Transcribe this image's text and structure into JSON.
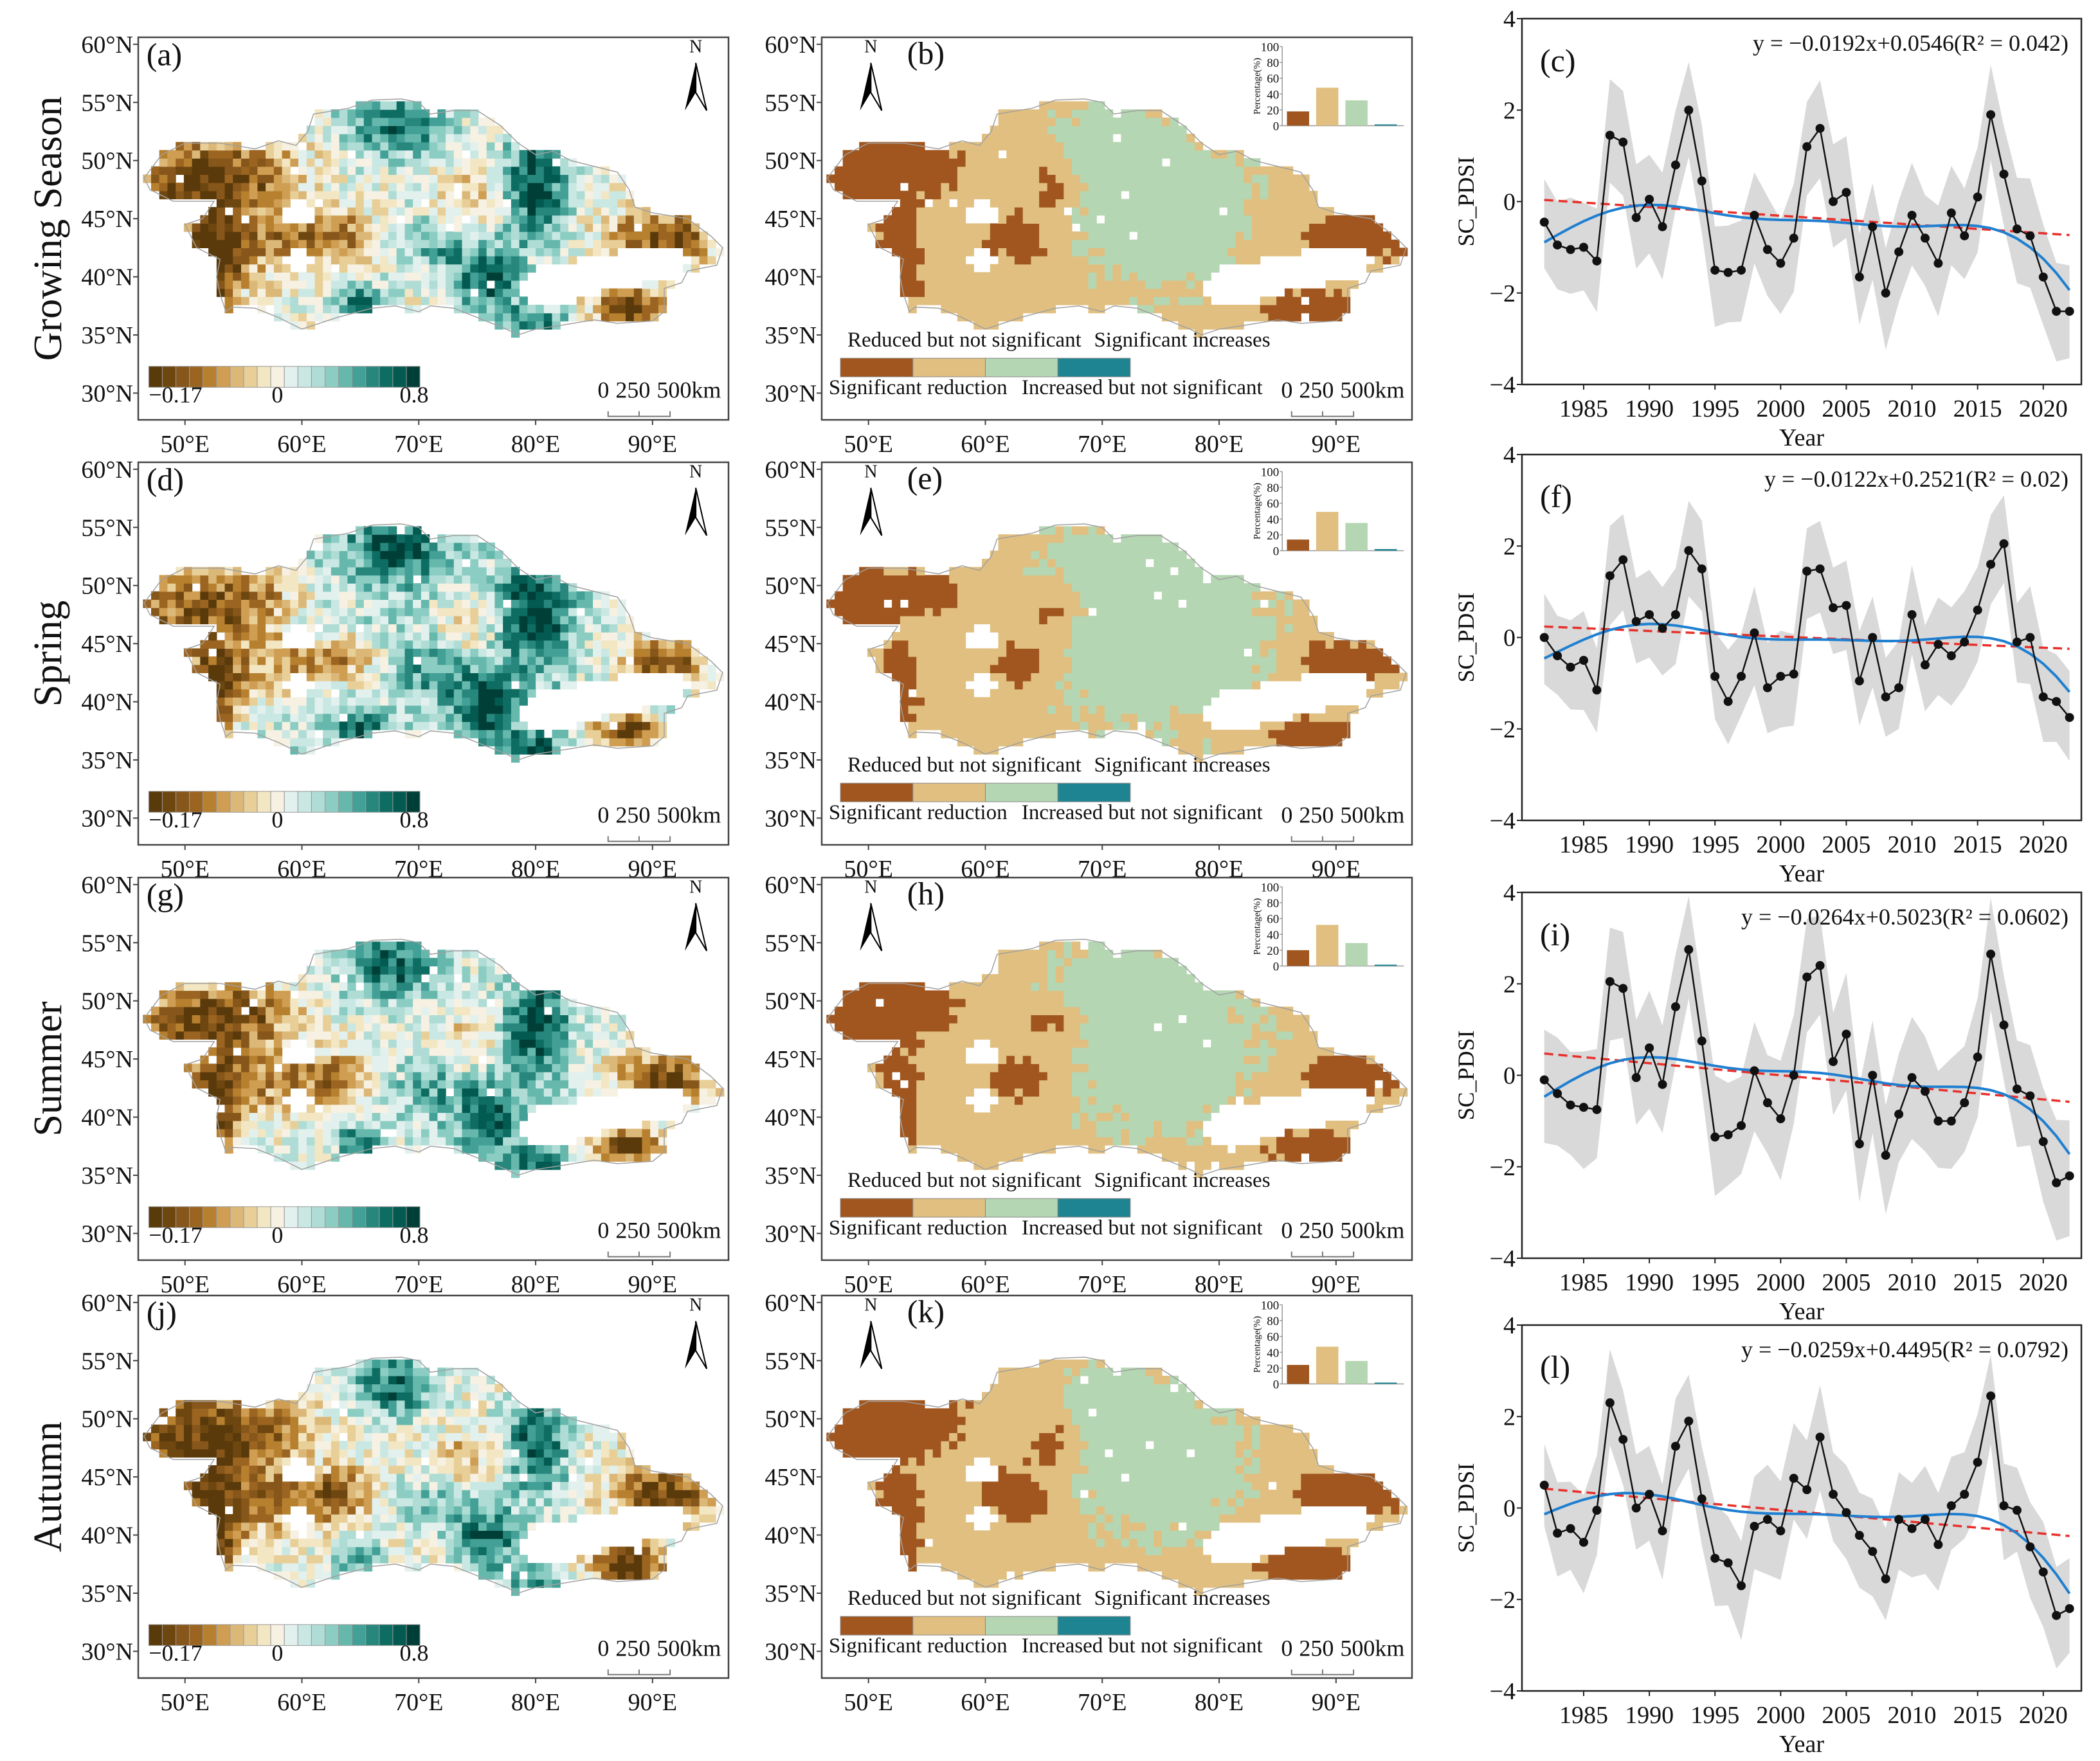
{
  "figure": {
    "row_labels": [
      "Growing Season",
      "Spring",
      "Summer",
      "Autumn"
    ]
  },
  "maps": {
    "lat_ticks": [
      "60°N",
      "55°N",
      "50°N",
      "45°N",
      "40°N",
      "35°N",
      "30°N"
    ],
    "lon_ticks": [
      "50°E",
      "60°E",
      "70°E",
      "80°E",
      "90°E"
    ],
    "north_label": "N",
    "scale_bar": {
      "labels": [
        "0",
        "250",
        "500km"
      ]
    },
    "colorbar": {
      "labels": [
        "−0.17",
        "0",
        "0.8"
      ],
      "colors": [
        "#5a3a0b",
        "#6e4710",
        "#87561a",
        "#9b6521",
        "#b7802f",
        "#cf9e52",
        "#dcb878",
        "#e8cf98",
        "#f3e6c3",
        "#f6f1e2",
        "#e3f1ee",
        "#c9e8e3",
        "#afdcd5",
        "#8ccdc3",
        "#66b8ad",
        "#43a096",
        "#27877d",
        "#0e6d63",
        "#035a50",
        "#003f37"
      ]
    },
    "trend_legend": {
      "top_labels": [
        "Reduced but not significant",
        "Significant increases"
      ],
      "bottom_labels": [
        "Significant reduction",
        "Increased but not significant"
      ],
      "categories": [
        "Significant reduction",
        "Reduced but not significant",
        "Increased but not significant",
        "Significant increases"
      ],
      "colors": [
        "#a0561e",
        "#e0bf80",
        "#b5d6b2",
        "#1f8491"
      ]
    },
    "inset": {
      "ylabel": "Percentage(%)",
      "yticks": [
        "0",
        "20",
        "40",
        "60",
        "80",
        "100"
      ],
      "ylim": [
        0,
        100
      ]
    },
    "correlation_panels": [
      {
        "label": "(a)"
      },
      {
        "label": "(d)"
      },
      {
        "label": "(g)"
      },
      {
        "label": "(j)"
      }
    ],
    "trend_panels": [
      {
        "label": "(b)",
        "percentages": [
          18,
          48,
          32,
          1
        ]
      },
      {
        "label": "(e)",
        "percentages": [
          14,
          49,
          35,
          2
        ]
      },
      {
        "label": "(h)",
        "percentages": [
          20,
          52,
          29,
          0
        ]
      },
      {
        "label": "(k)",
        "percentages": [
          24,
          47,
          29,
          0
        ]
      }
    ]
  },
  "chart_data": [
    {
      "type": "line",
      "label": "(c)",
      "season": "Growing Season",
      "equation": "y = −0.0192x+0.0546(R² = 0.042)",
      "slope": -0.0192,
      "intercept": 0.0546,
      "xlabel": "Year",
      "ylabel": "SC_PDSI",
      "xlim": [
        1980.3,
        2022.9
      ],
      "ylim": [
        -4,
        4
      ],
      "xticks": [
        "1985",
        "1990",
        "1995",
        "2000",
        "2005",
        "2010",
        "2015",
        "2020"
      ],
      "yticks": [
        "−4",
        "−2",
        "0",
        "2",
        "4"
      ],
      "x_start": 1982,
      "band_halfwidth": 1.1,
      "values": [
        -0.45,
        -0.95,
        -1.05,
        -1.0,
        -1.3,
        1.45,
        1.3,
        -0.35,
        0.05,
        -0.55,
        0.8,
        2.0,
        0.45,
        -1.5,
        -1.55,
        -1.5,
        -0.3,
        -1.05,
        -1.35,
        -0.8,
        1.2,
        1.6,
        0.0,
        0.2,
        -1.65,
        -0.55,
        -2.0,
        -1.1,
        -0.3,
        -0.8,
        -1.35,
        -0.25,
        -0.75,
        0.1,
        1.9,
        0.6,
        -0.6,
        -0.75,
        -1.65,
        -2.4,
        -2.4
      ]
    },
    {
      "type": "line",
      "label": "(f)",
      "season": "Spring",
      "equation": "y = −0.0122x+0.2521(R² = 0.02)",
      "slope": -0.0122,
      "intercept": 0.2521,
      "xlabel": "Year",
      "ylabel": "SC_PDSI",
      "xlim": [
        1980.3,
        2022.9
      ],
      "ylim": [
        -4,
        4
      ],
      "xticks": [
        "1985",
        "1990",
        "1995",
        "2000",
        "2005",
        "2010",
        "2015",
        "2020"
      ],
      "yticks": [
        "−4",
        "−2",
        "0",
        "2",
        "4"
      ],
      "x_start": 1982,
      "band_halfwidth": 1.0,
      "values": [
        0.0,
        -0.4,
        -0.65,
        -0.5,
        -1.15,
        1.35,
        1.7,
        0.35,
        0.5,
        0.2,
        0.5,
        1.9,
        1.5,
        -0.85,
        -1.4,
        -0.85,
        0.1,
        -1.1,
        -0.85,
        -0.8,
        1.45,
        1.5,
        0.65,
        0.7,
        -0.95,
        0.0,
        -1.3,
        -1.1,
        0.5,
        -0.6,
        -0.15,
        -0.4,
        -0.1,
        0.6,
        1.6,
        2.05,
        -0.1,
        0.0,
        -1.3,
        -1.4,
        -1.75
      ]
    },
    {
      "type": "line",
      "label": "(i)",
      "season": "Summer",
      "equation": "y = −0.0264x+0.5023(R² = 0.0602)",
      "slope": -0.0264,
      "intercept": 0.5023,
      "xlabel": "Year",
      "ylabel": "SC_PDSI",
      "xlim": [
        1980.3,
        2022.9
      ],
      "ylim": [
        -4,
        4
      ],
      "xticks": [
        "1985",
        "1990",
        "1995",
        "2000",
        "2005",
        "2010",
        "2015",
        "2020"
      ],
      "yticks": [
        "−4",
        "−2",
        "0",
        "2",
        "4"
      ],
      "x_start": 1982,
      "band_halfwidth": 1.2,
      "values": [
        -0.1,
        -0.4,
        -0.65,
        -0.7,
        -0.75,
        2.05,
        1.9,
        -0.05,
        0.6,
        -0.2,
        1.5,
        2.75,
        0.75,
        -1.35,
        -1.3,
        -1.1,
        0.1,
        -0.6,
        -0.95,
        0.0,
        2.15,
        2.4,
        0.3,
        0.9,
        -1.5,
        0.0,
        -1.75,
        -0.85,
        -0.05,
        -0.35,
        -1.0,
        -1.0,
        -0.6,
        0.4,
        2.65,
        1.1,
        -0.3,
        -0.45,
        -1.45,
        -2.35,
        -2.2
      ]
    },
    {
      "type": "line",
      "label": "(l)",
      "season": "Autumn",
      "equation": "y = −0.0259x+0.4495(R² = 0.0792)",
      "slope": -0.0259,
      "intercept": 0.4495,
      "xlabel": "Year",
      "ylabel": "SC_PDSI",
      "xlim": [
        1980.3,
        2022.9
      ],
      "ylim": [
        -4,
        4
      ],
      "xticks": [
        "1985",
        "1990",
        "1995",
        "2000",
        "2005",
        "2010",
        "2015",
        "2020"
      ],
      "yticks": [
        "−4",
        "−2",
        "0",
        "2",
        "4"
      ],
      "x_start": 1982,
      "band_halfwidth": 1.05,
      "values": [
        0.5,
        -0.55,
        -0.45,
        -0.75,
        -0.05,
        2.3,
        1.5,
        0.0,
        0.3,
        -0.5,
        1.35,
        1.9,
        0.2,
        -1.1,
        -1.2,
        -1.7,
        -0.4,
        -0.25,
        -0.5,
        0.65,
        0.4,
        1.55,
        0.3,
        -0.1,
        -0.6,
        -0.95,
        -1.55,
        -0.25,
        -0.45,
        -0.25,
        -0.8,
        0.05,
        0.3,
        1.0,
        2.45,
        0.05,
        -0.05,
        -0.85,
        -1.4,
        -2.35,
        -2.2
      ]
    }
  ]
}
